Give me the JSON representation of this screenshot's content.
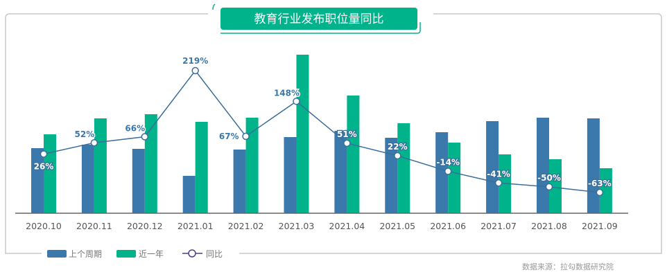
{
  "chart_data": {
    "type": "bar",
    "title": "教育行业发布职位量同比",
    "categories": [
      "2020.10",
      "2020.11",
      "2020.12",
      "2021.01",
      "2021.02",
      "2021.03",
      "2021.04",
      "2021.05",
      "2021.06",
      "2021.07",
      "2021.08",
      "2021.09"
    ],
    "series": [
      {
        "name": "上个周期",
        "type": "bar",
        "color": "#3b78ab",
        "values": [
          94,
          99,
          93,
          54,
          92,
          110,
          119,
          109,
          117,
          133,
          138,
          137
        ]
      },
      {
        "name": "近一年",
        "type": "bar",
        "color": "#00b38a",
        "values": [
          114,
          137,
          143,
          132,
          138,
          229,
          170,
          130,
          102,
          85,
          78,
          65
        ]
      },
      {
        "name": "同比",
        "type": "line",
        "color": "#3b6e9a",
        "unit": "%",
        "values": [
          26,
          52,
          66,
          219,
          67,
          148,
          51,
          22,
          -14,
          -41,
          -50,
          -63
        ],
        "label_pos": [
          "below",
          "above-left",
          "above-left",
          "above",
          "left",
          "above-left",
          "above",
          "above",
          "above",
          "above",
          "above",
          "above"
        ],
        "label_inverted": [
          true,
          false,
          false,
          false,
          false,
          false,
          true,
          true,
          true,
          true,
          true,
          true
        ]
      }
    ],
    "xlabel": "",
    "ylabel": "",
    "grid": false,
    "legend": "bottom-left",
    "note": "values in relative units; no y-axis shown"
  },
  "source": "数据来源：拉勾数据研究院"
}
